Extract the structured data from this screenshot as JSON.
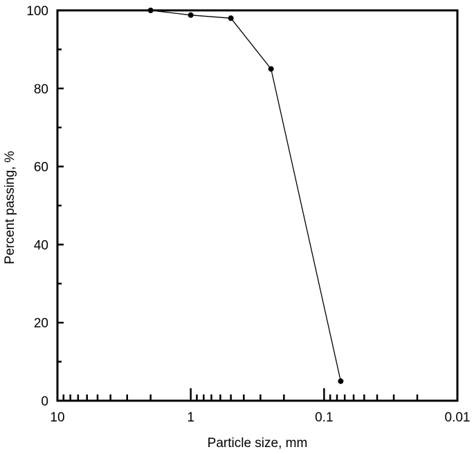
{
  "chart_data": {
    "type": "line",
    "title": "",
    "xlabel": "Particle size, mm",
    "ylabel": "Percent passing, %",
    "x_scale": "log",
    "x_reversed": true,
    "xlim": [
      10,
      0.01
    ],
    "ylim": [
      0,
      100
    ],
    "x_tick_labels": [
      "10",
      "1",
      "0.1",
      "0.01"
    ],
    "y_tick_labels": [
      "0",
      "20",
      "40",
      "60",
      "80",
      "100"
    ],
    "grid": false,
    "series": [
      {
        "x": [
          2.0,
          1.0,
          0.5,
          0.25,
          0.075
        ],
        "y": [
          100,
          98.8,
          98.0,
          85.0,
          5.0
        ]
      }
    ],
    "colors": {
      "line": "#000000",
      "marker": "#000000",
      "frame": "#000000"
    }
  }
}
